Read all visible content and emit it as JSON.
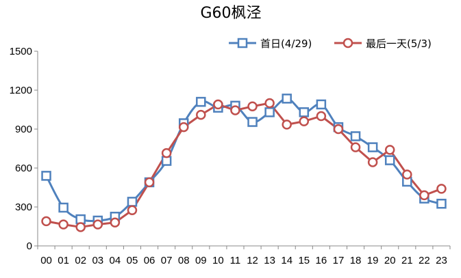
{
  "chart_data": {
    "type": "line",
    "title": "G60枫泾",
    "categories": [
      "00",
      "01",
      "02",
      "03",
      "04",
      "05",
      "06",
      "07",
      "08",
      "09",
      "10",
      "11",
      "12",
      "13",
      "14",
      "15",
      "16",
      "17",
      "18",
      "19",
      "20",
      "21",
      "22",
      "23"
    ],
    "ylim": [
      0,
      1500
    ],
    "yticks": [
      0,
      300,
      600,
      900,
      1200,
      1500
    ],
    "grid": false,
    "legend_position": "top-right",
    "series": [
      {
        "name": "首日(4/29)",
        "marker": "square",
        "color": "#4f81bd",
        "smooth": true,
        "values": [
          540,
          295,
          205,
          195,
          225,
          340,
          490,
          655,
          945,
          1110,
          1065,
          1080,
          955,
          1030,
          1135,
          1030,
          1090,
          915,
          845,
          760,
          660,
          495,
          365,
          325
        ]
      },
      {
        "name": "最后一天(5/3)",
        "marker": "circle",
        "color": "#c0504d",
        "smooth": false,
        "values": [
          190,
          165,
          145,
          165,
          180,
          275,
          490,
          715,
          915,
          1010,
          1090,
          1045,
          1075,
          1100,
          935,
          960,
          1000,
          900,
          760,
          645,
          740,
          550,
          390,
          440
        ]
      }
    ]
  }
}
